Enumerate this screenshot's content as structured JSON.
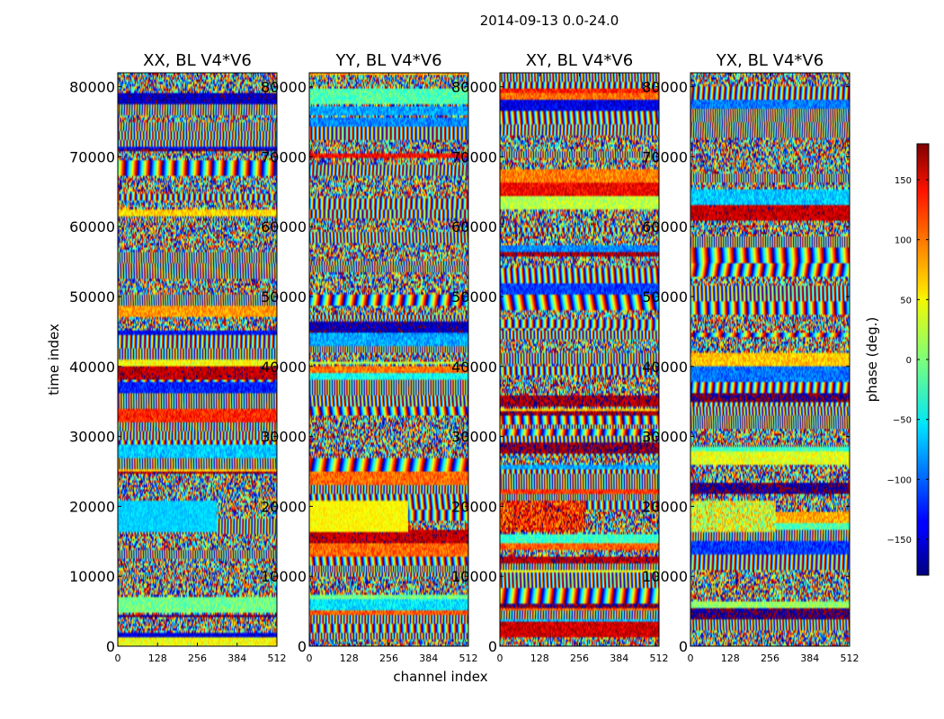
{
  "figure": {
    "suptitle": "2014-09-13 0.0-24.0",
    "colormap": "jet"
  },
  "chart_data": {
    "type": "heatmap",
    "title": "2014-09-13 0.0-24.0",
    "xlabel": "channel index",
    "ylabel": "time index",
    "xlim": [
      0,
      512
    ],
    "ylim": [
      0,
      82000
    ],
    "x_ticks": [
      "0",
      "128",
      "256",
      "384",
      "512"
    ],
    "y_ticks": [
      "0",
      "10000",
      "20000",
      "30000",
      "40000",
      "50000",
      "60000",
      "70000",
      "80000"
    ],
    "x_tick_values": [
      0,
      128,
      256,
      384,
      512
    ],
    "y_tick_values": [
      0,
      10000,
      20000,
      30000,
      40000,
      50000,
      60000,
      70000,
      80000
    ],
    "panels": [
      {
        "title": "XX, BL V4*V6",
        "polarization": "XX"
      },
      {
        "title": "YY, BL V4*V6",
        "polarization": "YY"
      },
      {
        "title": "XY, BL V4*V6",
        "polarization": "XY"
      },
      {
        "title": "YX, BL V4*V6",
        "polarization": "YX"
      }
    ],
    "colorbar": {
      "label": "phase (deg.)",
      "range": [
        -180,
        180
      ],
      "ticks": [
        "−150",
        "−100",
        "−50",
        "0",
        "50",
        "100",
        "150"
      ],
      "tick_values": [
        -150,
        -100,
        -50,
        0,
        50,
        100,
        150
      ],
      "grid": false
    }
  }
}
